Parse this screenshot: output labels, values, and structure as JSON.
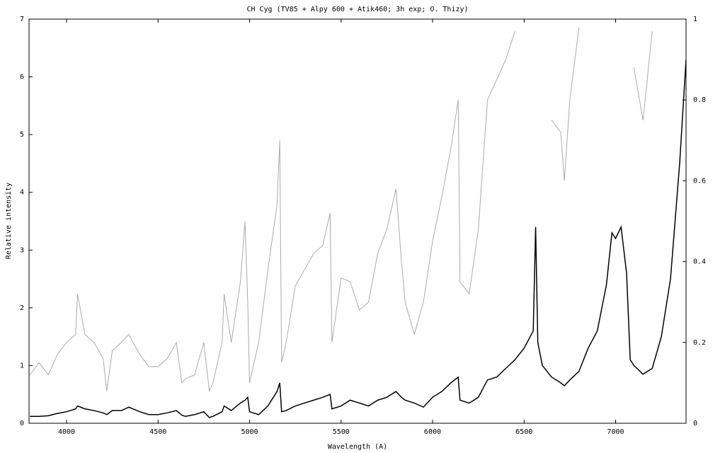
{
  "chart_data": {
    "type": "line",
    "title": "CH Cyg (TV85 + Alpy 600 + Atik460; 3h exp; O. Thizy)",
    "x_label": "Wavelength (A)",
    "y_label": "Relative intensity",
    "x": [
      3800,
      3850,
      3900,
      3950,
      4000,
      4050,
      4060,
      4100,
      4150,
      4200,
      4220,
      4250,
      4300,
      4340,
      4400,
      4450,
      4500,
      4550,
      4600,
      4630,
      4650,
      4700,
      4750,
      4780,
      4800,
      4850,
      4861,
      4900,
      4950,
      4975,
      4990,
      5000,
      5050,
      5100,
      5150,
      5165,
      5175,
      5200,
      5250,
      5300,
      5350,
      5400,
      5440,
      5450,
      5500,
      5550,
      5600,
      5650,
      5700,
      5750,
      5800,
      5830,
      5850,
      5900,
      5950,
      6000,
      6050,
      6100,
      6140,
      6150,
      6200,
      6250,
      6300,
      6350,
      6400,
      6450,
      6500,
      6550,
      6563,
      6575,
      6600,
      6650,
      6700,
      6720,
      6750,
      6800,
      6850,
      6900,
      6950,
      6980,
      7000,
      7030,
      7060,
      7080,
      7100,
      7150,
      7200,
      7250,
      7300,
      7350,
      7385
    ],
    "series": [
      {
        "color": "#000000",
        "values": [
          0.12,
          0.12,
          0.13,
          0.17,
          0.2,
          0.25,
          0.3,
          0.25,
          0.22,
          0.18,
          0.15,
          0.22,
          0.22,
          0.28,
          0.2,
          0.15,
          0.15,
          0.18,
          0.22,
          0.14,
          0.12,
          0.15,
          0.2,
          0.1,
          0.12,
          0.2,
          0.3,
          0.22,
          0.35,
          0.4,
          0.45,
          0.2,
          0.15,
          0.3,
          0.55,
          0.7,
          0.2,
          0.22,
          0.3,
          0.35,
          0.4,
          0.45,
          0.5,
          0.25,
          0.3,
          0.4,
          0.35,
          0.3,
          0.4,
          0.45,
          0.55,
          0.45,
          0.4,
          0.35,
          0.28,
          0.45,
          0.55,
          0.7,
          0.8,
          0.4,
          0.35,
          0.45,
          0.75,
          0.8,
          0.95,
          1.1,
          1.3,
          1.6,
          3.4,
          1.4,
          1.0,
          0.8,
          0.7,
          0.65,
          0.75,
          0.9,
          1.3,
          1.6,
          2.4,
          3.3,
          3.2,
          3.4,
          2.6,
          1.1,
          1.0,
          0.85,
          0.95,
          1.5,
          2.5,
          4.5,
          6.3
        ]
      },
      {
        "color": "#aaaaaa",
        "axis": "y2",
        "values": [
          0.12,
          0.15,
          0.12,
          0.17,
          0.2,
          0.22,
          0.32,
          0.22,
          0.2,
          0.16,
          0.08,
          0.18,
          0.2,
          0.22,
          0.17,
          0.14,
          0.14,
          0.16,
          0.2,
          0.1,
          0.11,
          0.12,
          0.2,
          0.08,
          0.1,
          0.2,
          0.32,
          0.2,
          0.35,
          0.5,
          0.3,
          0.1,
          0.2,
          0.38,
          0.54,
          0.7,
          0.15,
          0.2,
          0.34,
          0.38,
          0.42,
          0.44,
          0.52,
          0.2,
          0.36,
          0.35,
          0.28,
          0.3,
          0.42,
          0.48,
          0.58,
          0.4,
          0.3,
          0.22,
          0.3,
          0.45,
          0.56,
          0.68,
          0.8,
          0.35,
          0.32,
          0.48,
          0.8,
          0.85,
          0.9,
          0.97,
          null,
          null,
          null,
          null,
          null,
          0.75,
          0.72,
          0.6,
          0.8,
          0.98,
          null,
          null,
          null,
          null,
          null,
          null,
          null,
          null,
          0.88,
          0.75,
          0.97,
          null,
          null,
          null,
          null
        ]
      }
    ],
    "xlim": [
      3795,
      7385
    ],
    "xticks": [
      4000,
      4500,
      5000,
      5500,
      6000,
      6500,
      7000
    ],
    "ylim": [
      0,
      7
    ],
    "yticks": [
      0,
      1,
      2,
      3,
      4,
      5,
      6,
      7
    ],
    "y2lim": [
      0,
      1
    ],
    "y2ticks": [
      0,
      0.2,
      0.4,
      0.6,
      0.8,
      1
    ],
    "grid": false
  }
}
